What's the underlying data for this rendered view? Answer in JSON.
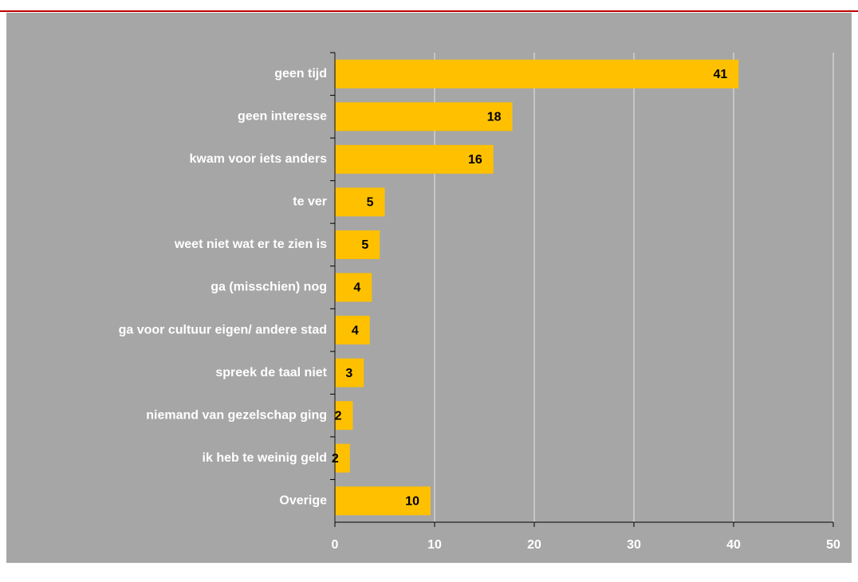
{
  "chart_data": {
    "type": "bar",
    "orientation": "horizontal",
    "categories": [
      "geen tijd",
      "geen interesse",
      "kwam voor iets anders",
      "te ver",
      "weet niet wat er te zien is",
      "ga (misschien) nog",
      "ga voor cultuur eigen/ andere stad",
      "spreek de taal niet",
      "niemand van gezelschap ging",
      "ik heb te weinig geld",
      "Overige"
    ],
    "values": [
      40.5,
      17.8,
      15.9,
      5.0,
      4.5,
      3.7,
      3.5,
      2.9,
      1.8,
      1.5,
      9.6
    ],
    "value_labels": [
      "41",
      "18",
      "16",
      "5",
      "5",
      "4",
      "4",
      "3",
      "2",
      "2",
      "10"
    ],
    "color": "#ffc000",
    "xlim": [
      0,
      50
    ],
    "xticks": [
      0,
      10,
      20,
      30,
      40,
      50
    ],
    "grid": true
  }
}
